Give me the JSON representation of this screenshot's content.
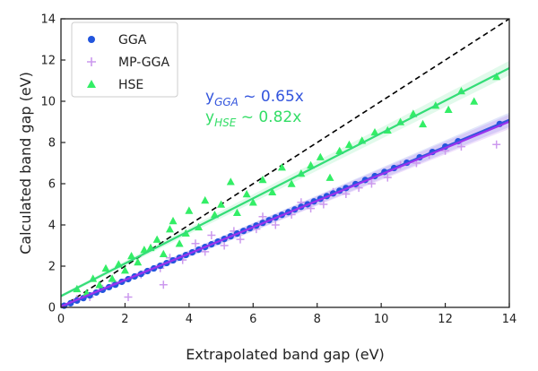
{
  "chart_data": {
    "type": "scatter",
    "title": "",
    "xlabel": "Extrapolated band gap (eV)",
    "ylabel": "Calculated band gap (eV)",
    "xlim": [
      0,
      14
    ],
    "ylim": [
      0,
      14
    ],
    "xticks": [
      0,
      2,
      4,
      6,
      8,
      10,
      12,
      14
    ],
    "yticks": [
      0,
      2,
      4,
      6,
      8,
      10,
      12,
      14
    ],
    "grid": false,
    "legend_position": "top-left",
    "reference_line": {
      "name": "y = x",
      "slope": 1,
      "intercept": 0,
      "style": "dashed",
      "color": "#000000"
    },
    "fits": [
      {
        "series": "GGA",
        "slope": 0.65,
        "intercept": 0.0,
        "color": "#3355dd"
      },
      {
        "series": "MP-GGA",
        "slope": 0.64,
        "intercept": 0.05,
        "color": "#9933ee"
      },
      {
        "series": "HSE",
        "slope": 0.79,
        "intercept": 0.55,
        "color": "#33dd77"
      }
    ],
    "annotations": [
      {
        "base": "y",
        "sub": "GGA",
        "text": " ~ 0.65x",
        "color": "#3355dd"
      },
      {
        "base": "y",
        "sub": "HSE",
        "text": " ~ 0.82x",
        "color": "#33dd66"
      }
    ],
    "series": [
      {
        "name": "GGA",
        "marker": "circle",
        "color": "#2255dd",
        "points": [
          [
            0.1,
            0.08
          ],
          [
            0.3,
            0.2
          ],
          [
            0.5,
            0.33
          ],
          [
            0.7,
            0.45
          ],
          [
            0.9,
            0.58
          ],
          [
            1.1,
            0.72
          ],
          [
            1.3,
            0.85
          ],
          [
            1.5,
            0.98
          ],
          [
            1.7,
            1.1
          ],
          [
            1.9,
            1.24
          ],
          [
            2.1,
            1.37
          ],
          [
            2.3,
            1.5
          ],
          [
            2.5,
            1.62
          ],
          [
            2.7,
            1.76
          ],
          [
            2.9,
            1.89
          ],
          [
            3.1,
            2.02
          ],
          [
            3.3,
            2.15
          ],
          [
            3.5,
            2.28
          ],
          [
            3.7,
            2.41
          ],
          [
            3.9,
            2.54
          ],
          [
            4.1,
            2.67
          ],
          [
            4.3,
            2.8
          ],
          [
            4.5,
            2.93
          ],
          [
            4.7,
            3.06
          ],
          [
            4.9,
            3.19
          ],
          [
            5.1,
            3.32
          ],
          [
            5.3,
            3.45
          ],
          [
            5.5,
            3.58
          ],
          [
            5.7,
            3.71
          ],
          [
            5.9,
            3.84
          ],
          [
            6.1,
            3.97
          ],
          [
            6.3,
            4.1
          ],
          [
            6.5,
            4.23
          ],
          [
            6.7,
            4.36
          ],
          [
            6.9,
            4.49
          ],
          [
            7.1,
            4.62
          ],
          [
            7.3,
            4.75
          ],
          [
            7.5,
            4.88
          ],
          [
            7.7,
            5.0
          ],
          [
            7.9,
            5.14
          ],
          [
            8.1,
            5.27
          ],
          [
            8.3,
            5.4
          ],
          [
            8.5,
            5.53
          ],
          [
            8.7,
            5.66
          ],
          [
            8.9,
            5.79
          ],
          [
            9.2,
            5.98
          ],
          [
            9.5,
            6.18
          ],
          [
            9.8,
            6.37
          ],
          [
            10.1,
            6.57
          ],
          [
            10.4,
            6.76
          ],
          [
            10.8,
            7.02
          ],
          [
            11.2,
            7.28
          ],
          [
            11.6,
            7.54
          ],
          [
            12.0,
            7.8
          ],
          [
            12.4,
            8.06
          ],
          [
            13.7,
            8.9
          ]
        ]
      },
      {
        "name": "MP-GGA",
        "marker": "plus",
        "color": "#cc99ee",
        "points": [
          [
            0.5,
            0.4
          ],
          [
            0.9,
            0.5
          ],
          [
            1.3,
            0.9
          ],
          [
            1.6,
            1.3
          ],
          [
            2.1,
            0.5
          ],
          [
            2.5,
            1.6
          ],
          [
            3.1,
            1.9
          ],
          [
            3.2,
            1.1
          ],
          [
            3.4,
            2.4
          ],
          [
            3.8,
            2.3
          ],
          [
            4.2,
            3.1
          ],
          [
            4.5,
            2.7
          ],
          [
            4.7,
            3.5
          ],
          [
            5.1,
            3.0
          ],
          [
            5.4,
            3.7
          ],
          [
            5.6,
            3.3
          ],
          [
            6.1,
            3.8
          ],
          [
            6.3,
            4.4
          ],
          [
            6.7,
            4.0
          ],
          [
            7.2,
            4.5
          ],
          [
            7.5,
            5.1
          ],
          [
            7.8,
            4.8
          ],
          [
            8.2,
            5.0
          ],
          [
            8.5,
            5.6
          ],
          [
            8.9,
            5.5
          ],
          [
            9.3,
            5.8
          ],
          [
            9.7,
            6.0
          ],
          [
            10.2,
            6.3
          ],
          [
            10.6,
            6.9
          ],
          [
            11.1,
            7.0
          ],
          [
            11.5,
            7.4
          ],
          [
            12.0,
            7.6
          ],
          [
            12.5,
            7.8
          ],
          [
            13.6,
            7.9
          ]
        ]
      },
      {
        "name": "HSE",
        "marker": "triangle",
        "color": "#33ee66",
        "points": [
          [
            0.5,
            0.9
          ],
          [
            0.8,
            0.7
          ],
          [
            1.0,
            1.4
          ],
          [
            1.2,
            1.1
          ],
          [
            1.4,
            1.9
          ],
          [
            1.6,
            1.4
          ],
          [
            1.8,
            2.1
          ],
          [
            2.0,
            1.8
          ],
          [
            2.2,
            2.5
          ],
          [
            2.4,
            2.2
          ],
          [
            2.6,
            2.8
          ],
          [
            2.8,
            2.9
          ],
          [
            3.0,
            3.3
          ],
          [
            3.2,
            2.6
          ],
          [
            3.4,
            3.8
          ],
          [
            3.5,
            4.2
          ],
          [
            3.7,
            3.1
          ],
          [
            3.9,
            3.6
          ],
          [
            4.0,
            4.7
          ],
          [
            4.3,
            3.9
          ],
          [
            4.5,
            5.2
          ],
          [
            4.8,
            4.5
          ],
          [
            5.0,
            5.0
          ],
          [
            5.3,
            6.1
          ],
          [
            5.5,
            4.6
          ],
          [
            5.8,
            5.5
          ],
          [
            6.0,
            5.1
          ],
          [
            6.3,
            6.2
          ],
          [
            6.6,
            5.6
          ],
          [
            6.9,
            6.8
          ],
          [
            7.2,
            6.0
          ],
          [
            7.5,
            6.5
          ],
          [
            7.8,
            6.9
          ],
          [
            8.1,
            7.3
          ],
          [
            8.4,
            6.3
          ],
          [
            8.7,
            7.6
          ],
          [
            9.0,
            7.9
          ],
          [
            9.4,
            8.1
          ],
          [
            9.8,
            8.5
          ],
          [
            10.2,
            8.6
          ],
          [
            10.6,
            9.0
          ],
          [
            11.0,
            9.4
          ],
          [
            11.3,
            8.9
          ],
          [
            11.7,
            9.8
          ],
          [
            12.1,
            9.6
          ],
          [
            12.5,
            10.5
          ],
          [
            12.9,
            10.0
          ],
          [
            13.6,
            11.2
          ]
        ]
      }
    ]
  }
}
